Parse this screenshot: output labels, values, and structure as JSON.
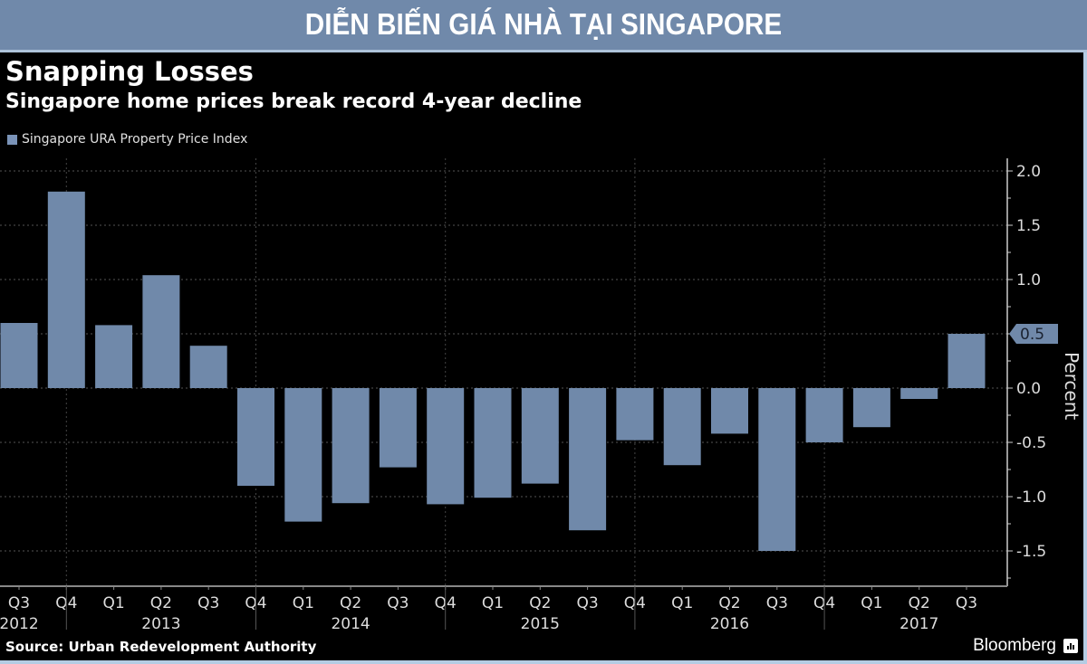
{
  "banner": {
    "title": "DIỄN BIẾN GIÁ NHÀ TẠI SINGAPORE"
  },
  "footer": {
    "source": "Source: Urban Redevelopment Authority",
    "brand": "Bloomberg"
  },
  "colors": {
    "bar": "#7089aa",
    "background": "#000000",
    "banner": "#7089aa",
    "frame": "#b4cce3"
  },
  "chart_data": {
    "type": "bar",
    "title": "Snapping Losses",
    "subtitle": "Singapore home prices break record 4-year decline",
    "legend": [
      "Singapore URA Property Price Index"
    ],
    "legend_position": "top-left",
    "xlabel": "",
    "ylabel": "Percent",
    "ylim": [
      -1.8,
      2.1
    ],
    "yticks": [
      2.0,
      1.5,
      1.0,
      0.5,
      0.0,
      -0.5,
      -1.0,
      -1.5
    ],
    "ytick_labels": [
      "2.0",
      "1.5",
      "1.0",
      "0.5",
      "0.0",
      "-0.5",
      "-1.0",
      "-1.5"
    ],
    "y_axis_side": "right",
    "grid": true,
    "last_value_label": "0.5",
    "categories": [
      "Q3 2012",
      "Q4 2012",
      "Q1 2013",
      "Q2 2013",
      "Q3 2013",
      "Q4 2013",
      "Q1 2014",
      "Q2 2014",
      "Q3 2014",
      "Q4 2014",
      "Q1 2015",
      "Q2 2015",
      "Q3 2015",
      "Q4 2015",
      "Q1 2016",
      "Q2 2016",
      "Q3 2016",
      "Q4 2016",
      "Q1 2017",
      "Q2 2017",
      "Q3 2017"
    ],
    "quarter_labels": [
      "Q3",
      "Q4",
      "Q1",
      "Q2",
      "Q3",
      "Q4",
      "Q1",
      "Q2",
      "Q3",
      "Q4",
      "Q1",
      "Q2",
      "Q3",
      "Q4",
      "Q1",
      "Q2",
      "Q3",
      "Q4",
      "Q1",
      "Q2",
      "Q3"
    ],
    "year_labels": [
      {
        "label": "2012",
        "center_index": 0
      },
      {
        "label": "2013",
        "center_index": 3
      },
      {
        "label": "2014",
        "center_index": 7
      },
      {
        "label": "2015",
        "center_index": 11
      },
      {
        "label": "2016",
        "center_index": 15
      },
      {
        "label": "2017",
        "center_index": 19
      }
    ],
    "year_separators_after_index": [
      1,
      5,
      9,
      13,
      17
    ],
    "series": [
      {
        "name": "Singapore URA Property Price Index",
        "values": [
          0.6,
          1.81,
          0.58,
          1.04,
          0.39,
          -0.9,
          -1.23,
          -1.06,
          -0.73,
          -1.07,
          -1.01,
          -0.88,
          -1.31,
          -0.48,
          -0.71,
          -0.42,
          -1.5,
          -0.5,
          -0.36,
          -0.1,
          0.5
        ]
      }
    ]
  }
}
